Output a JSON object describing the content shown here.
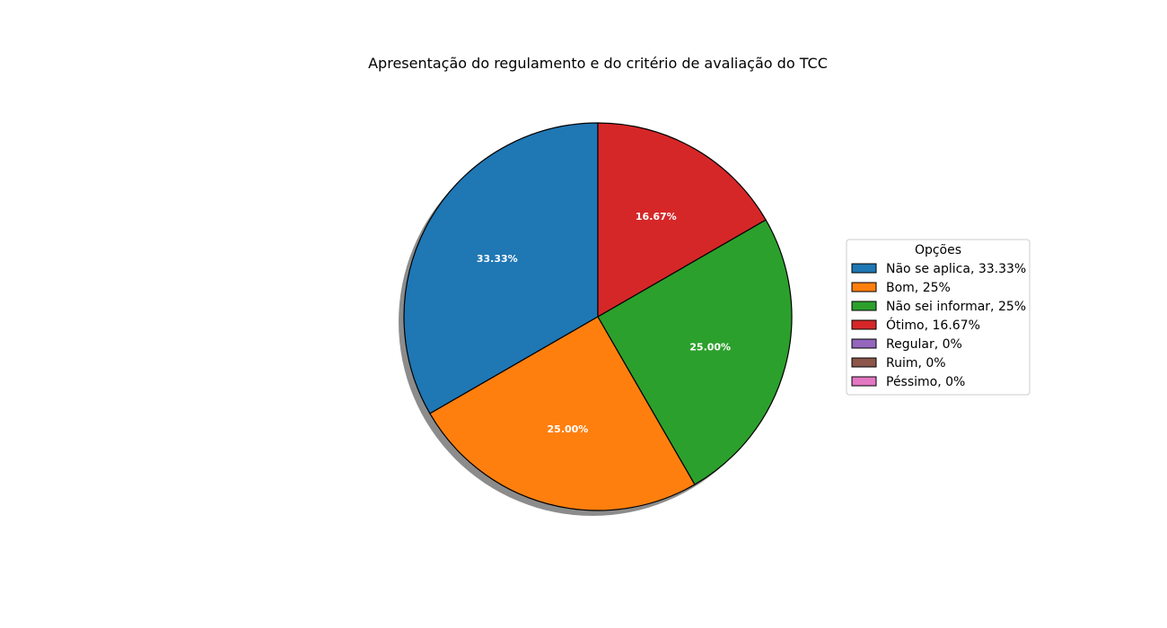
{
  "chart_data": {
    "type": "pie",
    "title": "Apresentação do regulamento e do critério de avaliação do TCC",
    "legend_title": "Opções",
    "legend_position": "right",
    "shadow": true,
    "slices": [
      {
        "label": "Não se aplica",
        "legend": "Não se aplica, 33.33%",
        "value": 33.33,
        "pct_label": "33.33%",
        "color": "#1f77b4"
      },
      {
        "label": "Bom",
        "legend": "Bom, 25%",
        "value": 25.0,
        "pct_label": "25.00%",
        "color": "#ff7f0e"
      },
      {
        "label": "Não sei informar",
        "legend": "Não sei informar, 25%",
        "value": 25.0,
        "pct_label": "25.00%",
        "color": "#2ca02c"
      },
      {
        "label": "Ótimo",
        "legend": "Ótimo, 16.67%",
        "value": 16.67,
        "pct_label": "16.67%",
        "color": "#d62728"
      },
      {
        "label": "Regular",
        "legend": "Regular, 0%",
        "value": 0,
        "pct_label": "",
        "color": "#9467bd"
      },
      {
        "label": "Ruim",
        "legend": "Ruim, 0%",
        "value": 0,
        "pct_label": "",
        "color": "#8c564b"
      },
      {
        "label": "Péssimo",
        "legend": "Péssimo, 0%",
        "value": 0,
        "pct_label": "",
        "color": "#e377c2"
      }
    ]
  }
}
